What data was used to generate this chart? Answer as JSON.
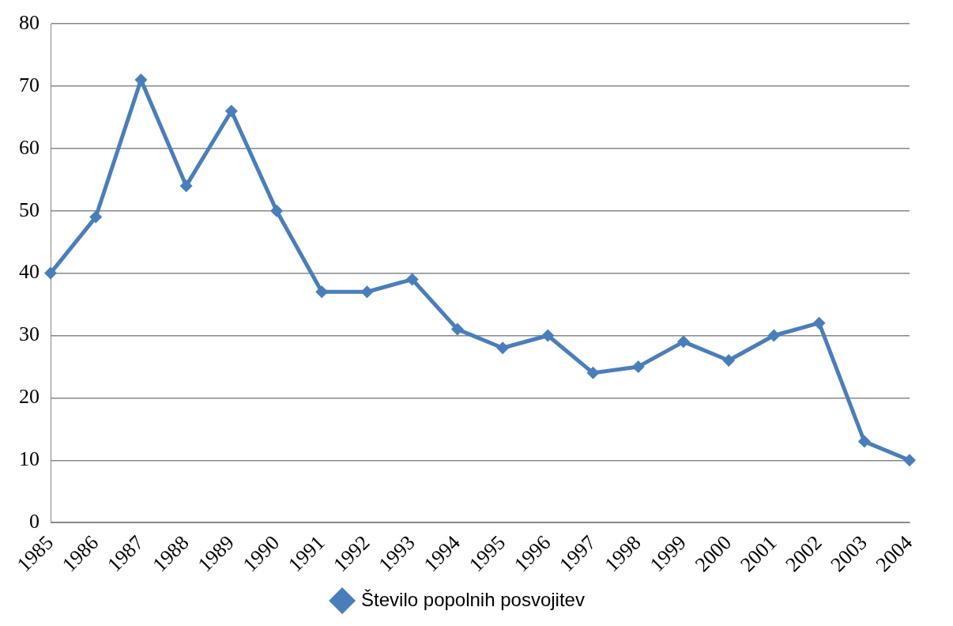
{
  "chart_data": {
    "type": "line",
    "categories": [
      "1985",
      "1986",
      "1987",
      "1988",
      "1989",
      "1990",
      "1991",
      "1992",
      "1993",
      "1994",
      "1995",
      "1996",
      "1997",
      "1998",
      "1999",
      "2000",
      "2001",
      "2002",
      "2003",
      "2004"
    ],
    "series": [
      {
        "name": "Število popolnih posvojitev",
        "color": "#4a7ebb",
        "values": [
          40,
          49,
          71,
          54,
          66,
          50,
          37,
          37,
          39,
          31,
          28,
          30,
          24,
          25,
          29,
          26,
          30,
          32,
          13,
          10
        ]
      }
    ],
    "ylim": [
      0,
      80
    ],
    "yticks": [
      0,
      10,
      20,
      30,
      40,
      50,
      60,
      70,
      80
    ],
    "grid": "y",
    "legend": "bottom",
    "marker": "diamond",
    "line_style": "solid"
  }
}
